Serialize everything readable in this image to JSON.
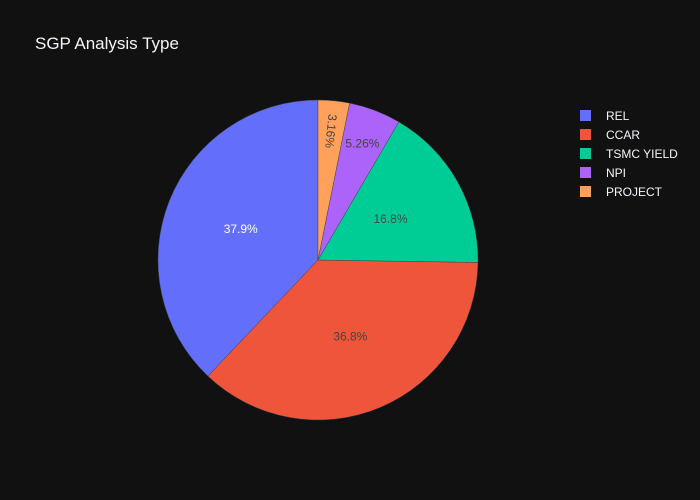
{
  "chart_data": {
    "type": "pie",
    "title": "SGP Analysis Type",
    "slices": [
      {
        "label": "REL",
        "value": 37.9,
        "text": "37.9%",
        "color": "#636efa",
        "text_color": "#ffffff"
      },
      {
        "label": "CCAR",
        "value": 36.8,
        "text": "36.8%",
        "color": "#ef553b",
        "text_color": "#444444"
      },
      {
        "label": "TSMC YIELD",
        "value": 16.8,
        "text": "16.8%",
        "color": "#00cc96",
        "text_color": "#444444"
      },
      {
        "label": "NPI",
        "value": 5.26,
        "text": "5.26%",
        "color": "#ab63fa",
        "text_color": "#444444"
      },
      {
        "label": "PROJECT",
        "value": 3.16,
        "text": "3.16%",
        "color": "#ffa15a",
        "text_color": "#444444"
      }
    ],
    "legend_order": [
      "REL",
      "CCAR",
      "TSMC YIELD",
      "NPI",
      "PROJECT"
    ],
    "legend_position": "top-right",
    "direction": "counterclockwise",
    "start": "top"
  },
  "theme": {
    "background": "#111111",
    "text": "#f2f5fa"
  }
}
